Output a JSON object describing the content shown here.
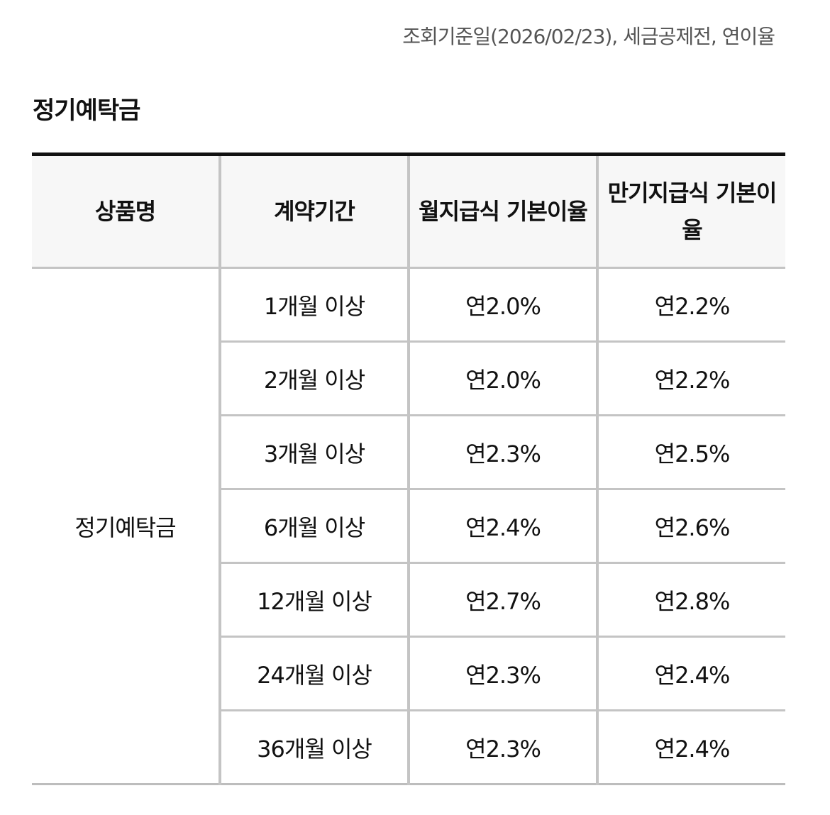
{
  "reference_note": "조회기준일(2026/02/23), 세금공제전, 연이율",
  "section_title": "정기예탁금",
  "table": {
    "headers": {
      "product": "상품명",
      "term": "계약기간",
      "monthly_rate": "월지급식 기본이율",
      "maturity_rate": "만기지급식 기본이율"
    },
    "product_name": "정기예탁금",
    "rows": [
      {
        "term": "1개월 이상",
        "monthly": "연2.0%",
        "maturity": "연2.2%"
      },
      {
        "term": "2개월 이상",
        "monthly": "연2.0%",
        "maturity": "연2.2%"
      },
      {
        "term": "3개월 이상",
        "monthly": "연2.3%",
        "maturity": "연2.5%"
      },
      {
        "term": "6개월 이상",
        "monthly": "연2.4%",
        "maturity": "연2.6%"
      },
      {
        "term": "12개월 이상",
        "monthly": "연2.7%",
        "maturity": "연2.8%"
      },
      {
        "term": "24개월 이상",
        "monthly": "연2.3%",
        "maturity": "연2.4%"
      },
      {
        "term": "36개월 이상",
        "monthly": "연2.3%",
        "maturity": "연2.4%"
      }
    ]
  }
}
